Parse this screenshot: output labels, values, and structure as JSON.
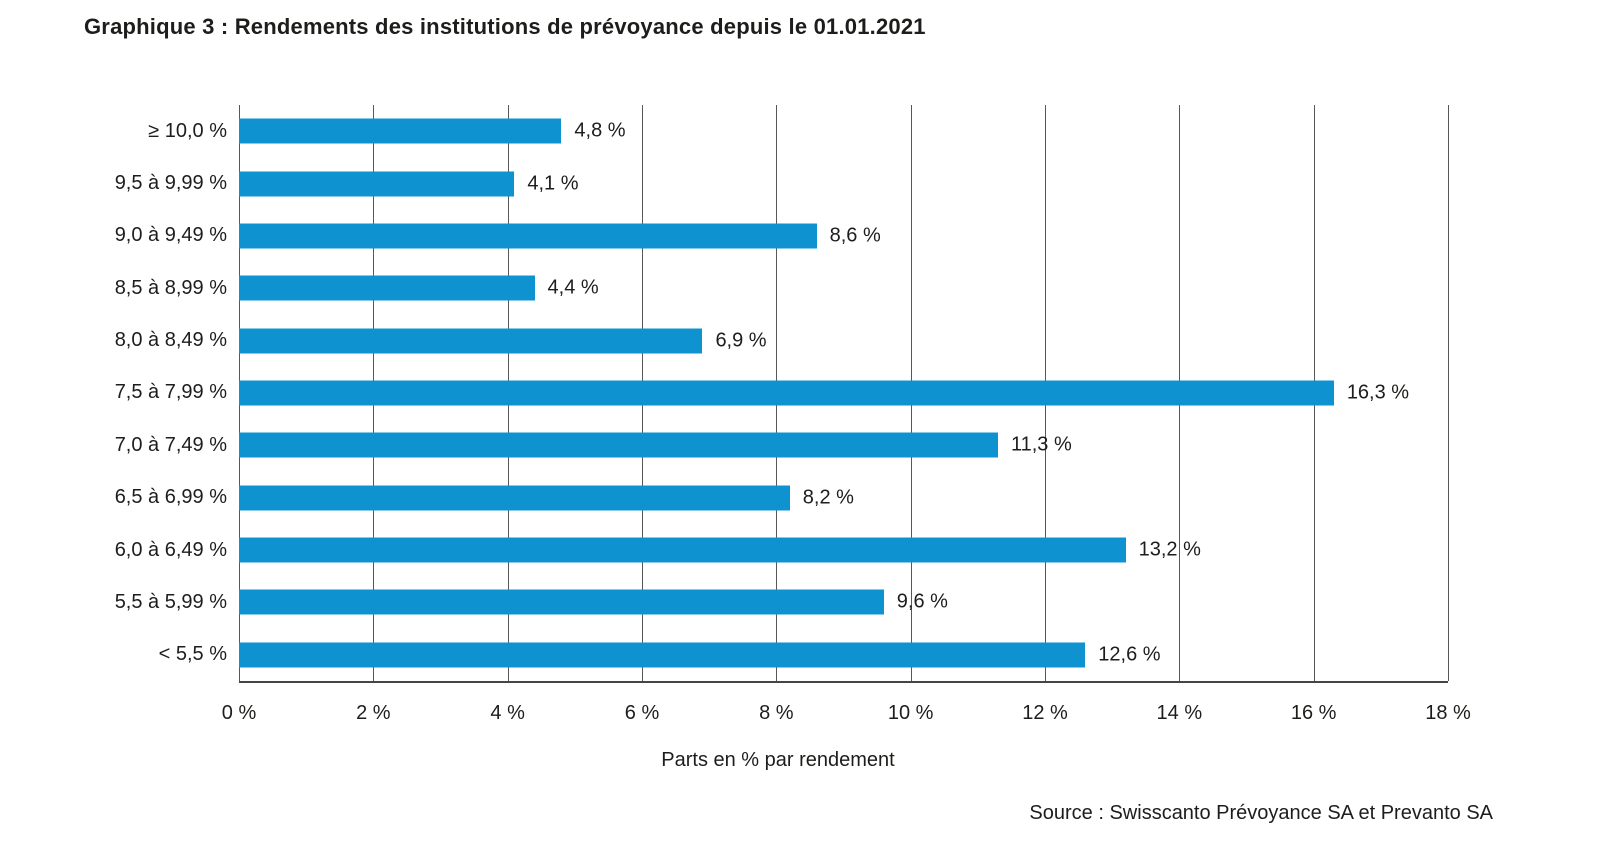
{
  "title": "Graphique 3 : Rendements des institutions de prévoyance depuis le 01.01.2021",
  "source": "Source : Swisscanto Prévoyance SA et Prevanto SA",
  "chart_data": {
    "type": "bar",
    "orientation": "horizontal",
    "title": "Graphique 3 : Rendements des institutions de prévoyance depuis le 01.01.2021",
    "xlabel": "Parts en % par rendement",
    "ylabel": "",
    "xlim": [
      0,
      18
    ],
    "grid": "vertical",
    "legend": "none",
    "categories": [
      "≥ 10,0 %",
      "9,5 à 9,99 %",
      "9,0 à 9,49 %",
      "8,5 à 8,99 %",
      "8,0 à 8,49 %",
      "7,5 à 7,99 %",
      "7,0 à 7,49 %",
      "6,5 à 6,99 %",
      "6,0 à 6,49 %",
      "5,5 à 5,99 %",
      "< 5,5 %"
    ],
    "values": [
      4.8,
      4.1,
      8.6,
      4.4,
      6.9,
      16.3,
      11.3,
      8.2,
      13.2,
      9.6,
      12.6
    ],
    "value_labels": [
      "4,8 %",
      "4,1 %",
      "8,6 %",
      "4,4 %",
      "6,9 %",
      "16,3 %",
      "11,3 %",
      "8,2 %",
      "13,2 %",
      "9,6 %",
      "12,6 %"
    ],
    "tick_values": [
      0,
      2,
      4,
      6,
      8,
      10,
      12,
      14,
      16,
      18
    ],
    "tick_labels": [
      "0 %",
      "2 %",
      "4 %",
      "6 %",
      "8 %",
      "10 %",
      "12 %",
      "14 %",
      "16 %",
      "18 %"
    ]
  },
  "colors": {
    "bar": "#0e93d0",
    "gridline": "#58585a",
    "axis_line": "#454545",
    "text": "#1d1d1b",
    "background": "#ffffff"
  }
}
